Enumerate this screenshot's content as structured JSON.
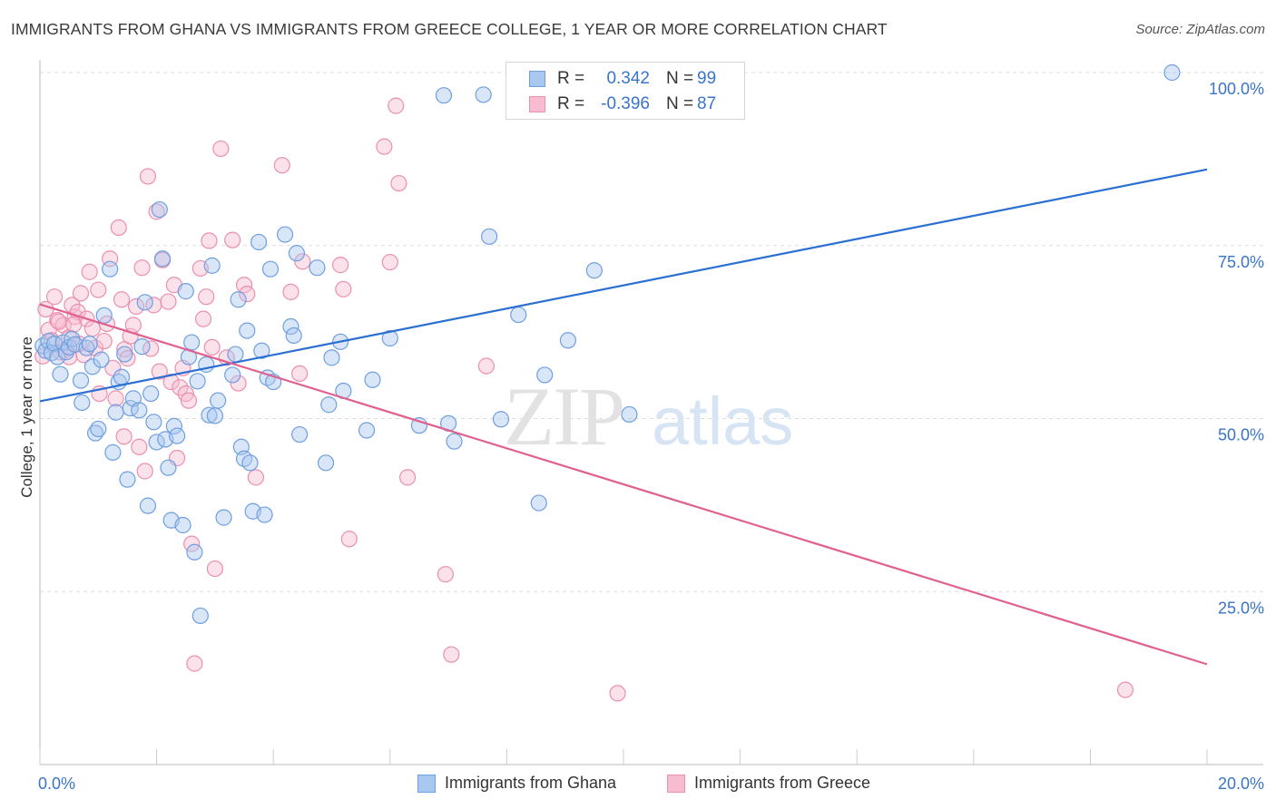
{
  "header": {
    "title": "IMMIGRANTS FROM GHANA VS IMMIGRANTS FROM GREECE COLLEGE, 1 YEAR OR MORE CORRELATION CHART",
    "source": "Source: ZipAtlas.com"
  },
  "watermark": {
    "zip": "ZIP",
    "atlas": "atlas"
  },
  "legend": {
    "r_label": "R =",
    "n_label": "N =",
    "ghana": {
      "r": "0.342",
      "n": "99"
    },
    "greece": {
      "r": "-0.396",
      "n": "87"
    }
  },
  "colors": {
    "ghana_fill": "#a9c8f0",
    "ghana_stroke": "#6f9fe0",
    "ghana_line": "#2a6fd1",
    "greece_fill": "#f7bcd0",
    "greece_stroke": "#eb8fb0",
    "greece_line": "#e0608f",
    "tick_text": "#3a74c9",
    "grid": "#dddddd"
  },
  "chart_data": {
    "type": "scatter",
    "ylabel": "College, 1 year or more",
    "xlabel": "",
    "xlim": [
      0,
      20
    ],
    "ylim": [
      0,
      100
    ],
    "x_tick_labels": [
      "0.0%",
      "20.0%"
    ],
    "y_ticks": [
      {
        "value": 100,
        "label": "100.0%"
      },
      {
        "value": 75,
        "label": "75.0%"
      },
      {
        "value": 50,
        "label": "50.0%"
      },
      {
        "value": 25,
        "label": "25.0%"
      }
    ],
    "grid": "horizontal dashed",
    "series": [
      {
        "name": "Immigrants from Ghana",
        "trend": {
          "x": [
            0,
            20
          ],
          "y": [
            52.5,
            86
          ]
        },
        "points": [
          [
            0.05,
            60.5
          ],
          [
            0.1,
            59.8
          ],
          [
            0.15,
            61.2
          ],
          [
            0.2,
            59.5
          ],
          [
            0.25,
            60.8
          ],
          [
            0.3,
            58.9
          ],
          [
            0.35,
            56.4
          ],
          [
            0.4,
            61.0
          ],
          [
            0.45,
            59.6
          ],
          [
            0.5,
            60.3
          ],
          [
            0.55,
            61.5
          ],
          [
            0.6,
            60.7
          ],
          [
            0.7,
            55.5
          ],
          [
            0.72,
            52.3
          ],
          [
            0.8,
            60.2
          ],
          [
            0.85,
            60.8
          ],
          [
            0.9,
            57.5
          ],
          [
            0.95,
            47.9
          ],
          [
            1.0,
            48.5
          ],
          [
            1.05,
            58.5
          ],
          [
            1.1,
            64.9
          ],
          [
            1.2,
            71.6
          ],
          [
            1.25,
            45.1
          ],
          [
            1.3,
            50.9
          ],
          [
            1.35,
            55.3
          ],
          [
            1.4,
            56.0
          ],
          [
            1.45,
            59.3
          ],
          [
            1.5,
            41.2
          ],
          [
            1.55,
            51.5
          ],
          [
            1.6,
            52.9
          ],
          [
            1.7,
            51.2
          ],
          [
            1.75,
            60.4
          ],
          [
            1.8,
            66.8
          ],
          [
            1.85,
            37.4
          ],
          [
            1.9,
            53.6
          ],
          [
            1.95,
            49.5
          ],
          [
            2.0,
            46.6
          ],
          [
            2.05,
            80.2
          ],
          [
            2.1,
            73.1
          ],
          [
            2.15,
            47.0
          ],
          [
            2.2,
            42.9
          ],
          [
            2.25,
            35.3
          ],
          [
            2.3,
            48.9
          ],
          [
            2.35,
            47.5
          ],
          [
            2.45,
            34.6
          ],
          [
            2.5,
            68.4
          ],
          [
            2.55,
            58.9
          ],
          [
            2.6,
            61.0
          ],
          [
            2.65,
            30.7
          ],
          [
            2.7,
            55.4
          ],
          [
            2.75,
            21.5
          ],
          [
            2.85,
            57.8
          ],
          [
            2.9,
            50.5
          ],
          [
            2.95,
            72.1
          ],
          [
            3.0,
            50.4
          ],
          [
            3.05,
            52.6
          ],
          [
            3.15,
            35.7
          ],
          [
            3.3,
            56.3
          ],
          [
            3.35,
            59.3
          ],
          [
            3.4,
            67.2
          ],
          [
            3.45,
            45.9
          ],
          [
            3.5,
            44.2
          ],
          [
            3.55,
            62.7
          ],
          [
            3.6,
            43.6
          ],
          [
            3.65,
            36.6
          ],
          [
            3.75,
            75.5
          ],
          [
            3.8,
            59.8
          ],
          [
            3.85,
            36.1
          ],
          [
            3.9,
            55.9
          ],
          [
            3.95,
            71.6
          ],
          [
            4.0,
            55.3
          ],
          [
            4.2,
            76.6
          ],
          [
            4.3,
            63.3
          ],
          [
            4.35,
            62.0
          ],
          [
            4.4,
            73.9
          ],
          [
            4.45,
            47.7
          ],
          [
            4.75,
            71.8
          ],
          [
            4.9,
            43.6
          ],
          [
            4.95,
            52.0
          ],
          [
            5.0,
            58.8
          ],
          [
            5.15,
            61.1
          ],
          [
            5.2,
            54.0
          ],
          [
            5.6,
            48.3
          ],
          [
            5.7,
            55.6
          ],
          [
            6.0,
            61.6
          ],
          [
            6.5,
            49.0
          ],
          [
            7.0,
            49.3
          ],
          [
            7.1,
            46.7
          ],
          [
            6.92,
            96.7
          ],
          [
            7.6,
            96.8
          ],
          [
            7.7,
            76.3
          ],
          [
            7.9,
            49.9
          ],
          [
            8.2,
            65.0
          ],
          [
            8.55,
            37.8
          ],
          [
            8.65,
            56.3
          ],
          [
            9.05,
            61.3
          ],
          [
            9.5,
            71.4
          ],
          [
            10.1,
            50.6
          ],
          [
            19.4,
            100.0
          ]
        ]
      },
      {
        "name": "Immigrants from Greece",
        "trend": {
          "x": [
            0,
            20
          ],
          "y": [
            66.5,
            14.5
          ]
        },
        "points": [
          [
            0.05,
            59.0
          ],
          [
            0.1,
            65.8
          ],
          [
            0.15,
            62.8
          ],
          [
            0.2,
            61.3
          ],
          [
            0.25,
            67.6
          ],
          [
            0.3,
            64.2
          ],
          [
            0.35,
            59.6
          ],
          [
            0.4,
            63.5
          ],
          [
            0.5,
            61.7
          ],
          [
            0.55,
            66.4
          ],
          [
            0.6,
            64.7
          ],
          [
            0.65,
            65.4
          ],
          [
            0.7,
            68.1
          ],
          [
            0.75,
            59.2
          ],
          [
            0.8,
            64.4
          ],
          [
            0.85,
            71.2
          ],
          [
            0.9,
            63.0
          ],
          [
            0.95,
            60.2
          ],
          [
            1.0,
            68.6
          ],
          [
            1.1,
            61.2
          ],
          [
            1.15,
            63.7
          ],
          [
            1.2,
            73.1
          ],
          [
            1.25,
            57.3
          ],
          [
            1.3,
            52.9
          ],
          [
            1.35,
            77.6
          ],
          [
            1.4,
            67.2
          ],
          [
            1.45,
            60.0
          ],
          [
            1.5,
            58.7
          ],
          [
            1.55,
            61.9
          ],
          [
            1.6,
            63.5
          ],
          [
            1.65,
            66.2
          ],
          [
            1.7,
            45.9
          ],
          [
            1.75,
            71.8
          ],
          [
            1.8,
            42.4
          ],
          [
            1.85,
            85.0
          ],
          [
            1.9,
            60.1
          ],
          [
            1.95,
            66.4
          ],
          [
            2.0,
            79.9
          ],
          [
            2.05,
            56.8
          ],
          [
            2.1,
            72.9
          ],
          [
            2.2,
            66.9
          ],
          [
            2.25,
            55.3
          ],
          [
            2.3,
            69.3
          ],
          [
            2.35,
            44.3
          ],
          [
            2.4,
            54.5
          ],
          [
            2.45,
            57.3
          ],
          [
            2.5,
            53.6
          ],
          [
            2.55,
            52.6
          ],
          [
            2.6,
            31.9
          ],
          [
            2.65,
            14.6
          ],
          [
            2.75,
            71.7
          ],
          [
            2.8,
            64.4
          ],
          [
            2.85,
            67.6
          ],
          [
            2.9,
            75.7
          ],
          [
            2.95,
            60.3
          ],
          [
            3.0,
            28.3
          ],
          [
            3.1,
            89.0
          ],
          [
            3.2,
            58.8
          ],
          [
            3.3,
            75.8
          ],
          [
            3.4,
            55.1
          ],
          [
            3.5,
            69.3
          ],
          [
            3.55,
            68.0
          ],
          [
            3.7,
            41.5
          ],
          [
            4.15,
            86.6
          ],
          [
            4.3,
            68.3
          ],
          [
            4.45,
            56.5
          ],
          [
            4.5,
            72.7
          ],
          [
            5.15,
            72.2
          ],
          [
            5.2,
            68.7
          ],
          [
            5.3,
            32.6
          ],
          [
            5.9,
            89.3
          ],
          [
            6.0,
            72.6
          ],
          [
            6.1,
            95.2
          ],
          [
            6.15,
            84.0
          ],
          [
            6.3,
            41.5
          ],
          [
            6.95,
            27.5
          ],
          [
            7.05,
            15.9
          ],
          [
            7.65,
            57.6
          ],
          [
            9.9,
            10.3
          ],
          [
            18.6,
            10.8
          ],
          [
            0.32,
            64.0
          ],
          [
            0.42,
            59.8
          ],
          [
            0.5,
            58.9
          ],
          [
            0.58,
            63.6
          ],
          [
            0.67,
            60.8
          ],
          [
            1.02,
            53.6
          ],
          [
            1.44,
            47.4
          ]
        ]
      }
    ]
  }
}
